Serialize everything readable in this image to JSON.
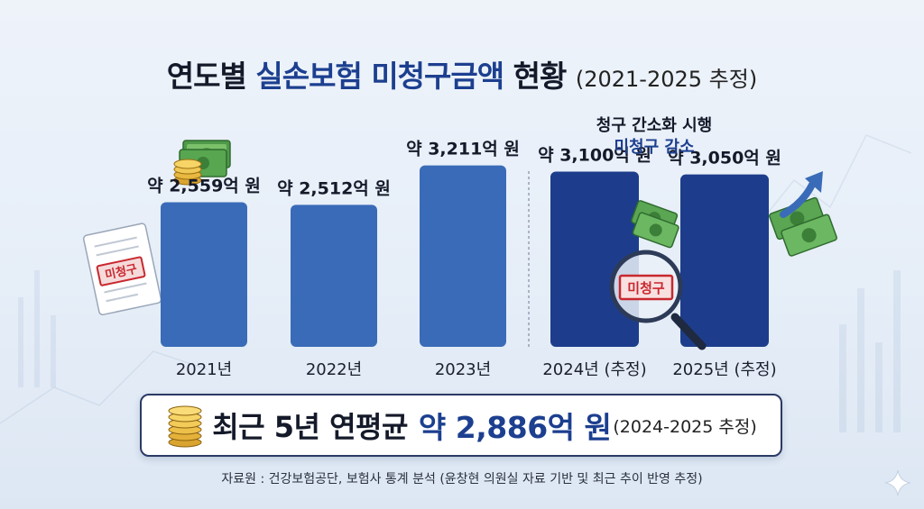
{
  "title": {
    "part1": "연도별",
    "part2": "실손보험 미청구금액",
    "part3": "현황",
    "sub": "(2021-2025 추정)"
  },
  "note": {
    "line1": "청구 간소화 시행",
    "line2": "미청구 감소"
  },
  "chart_data": {
    "type": "bar",
    "categories": [
      "2021년",
      "2022년",
      "2023년",
      "2024년 (추정)",
      "2025년 (추정)"
    ],
    "values": [
      2559,
      2512,
      3211,
      3100,
      3050
    ],
    "value_labels": [
      "약 2,559억 원",
      "약 2,512억 원",
      "약 3,211억 원",
      "약 3,100억 원",
      "약 3,050억 원"
    ],
    "unit": "억 원",
    "estimated": [
      false,
      false,
      false,
      true,
      true
    ],
    "colors": {
      "actual": "#3a6bb8",
      "estimated": "#1d3d8c",
      "stamp": "#c8282e"
    },
    "ylim": [
      0,
      3300
    ],
    "grid": false,
    "stamp_label": "미청구"
  },
  "summary": {
    "main": "최근 5년 연평균",
    "value": "약 2,886억 원",
    "sub": "(2024-2025 추정)"
  },
  "source": "자료원 : 건강보험공단, 보험사 통계 분석 (윤창현 의원실 자료 기반 및 최근 추이 반영 추정)",
  "icons": [
    "money-stack-icon",
    "coin-stack-icon",
    "document-icon",
    "magnifier-icon",
    "cash-icon",
    "arrow-up-icon",
    "sparkle-icon"
  ]
}
